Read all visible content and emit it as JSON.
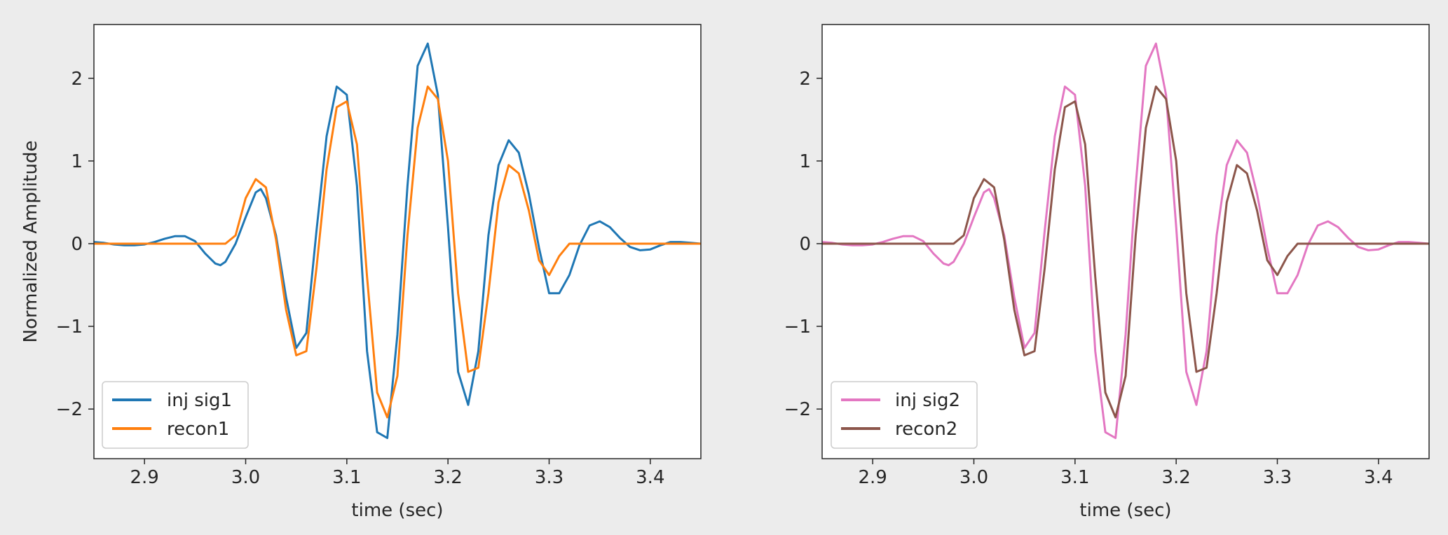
{
  "figure": {
    "background": "#ececec"
  },
  "chart_data": [
    {
      "type": "line",
      "title": "",
      "xlabel": "time (sec)",
      "ylabel": "Normalized Amplitude",
      "xlim": [
        2.85,
        3.45
      ],
      "ylim": [
        -2.6,
        2.65
      ],
      "xticks": [
        2.9,
        3.0,
        3.1,
        3.2,
        3.3,
        3.4
      ],
      "xtick_labels": [
        "2.9",
        "3.0",
        "3.1",
        "3.2",
        "3.3",
        "3.4"
      ],
      "yticks": [
        -2,
        -1,
        0,
        1,
        2
      ],
      "ytick_labels": [
        "−2",
        "−1",
        "0",
        "1",
        "2"
      ],
      "grid": false,
      "legend_position": "lower-left",
      "series": [
        {
          "name": "inj sig1",
          "color": "#1f77b4",
          "points": [
            [
              2.85,
              0.02
            ],
            [
              2.86,
              0.01
            ],
            [
              2.87,
              -0.01
            ],
            [
              2.88,
              -0.02
            ],
            [
              2.89,
              -0.02
            ],
            [
              2.9,
              -0.01
            ],
            [
              2.91,
              0.02
            ],
            [
              2.92,
              0.06
            ],
            [
              2.93,
              0.09
            ],
            [
              2.94,
              0.09
            ],
            [
              2.95,
              0.03
            ],
            [
              2.96,
              -0.12
            ],
            [
              2.97,
              -0.24
            ],
            [
              2.975,
              -0.26
            ],
            [
              2.98,
              -0.22
            ],
            [
              2.99,
              0.0
            ],
            [
              3.0,
              0.32
            ],
            [
              3.01,
              0.62
            ],
            [
              3.015,
              0.66
            ],
            [
              3.02,
              0.55
            ],
            [
              3.03,
              0.1
            ],
            [
              3.04,
              -0.65
            ],
            [
              3.05,
              -1.26
            ],
            [
              3.06,
              -1.08
            ],
            [
              3.07,
              0.15
            ],
            [
              3.08,
              1.3
            ],
            [
              3.09,
              1.9
            ],
            [
              3.1,
              1.8
            ],
            [
              3.11,
              0.7
            ],
            [
              3.12,
              -1.3
            ],
            [
              3.13,
              -2.28
            ],
            [
              3.14,
              -2.35
            ],
            [
              3.15,
              -1.1
            ],
            [
              3.16,
              0.7
            ],
            [
              3.17,
              2.15
            ],
            [
              3.18,
              2.42
            ],
            [
              3.19,
              1.8
            ],
            [
              3.2,
              0.2
            ],
            [
              3.21,
              -1.55
            ],
            [
              3.22,
              -1.95
            ],
            [
              3.23,
              -1.3
            ],
            [
              3.24,
              0.1
            ],
            [
              3.25,
              0.95
            ],
            [
              3.26,
              1.25
            ],
            [
              3.27,
              1.1
            ],
            [
              3.28,
              0.6
            ],
            [
              3.29,
              -0.05
            ],
            [
              3.3,
              -0.6
            ],
            [
              3.31,
              -0.6
            ],
            [
              3.32,
              -0.38
            ],
            [
              3.33,
              -0.02
            ],
            [
              3.34,
              0.22
            ],
            [
              3.35,
              0.27
            ],
            [
              3.36,
              0.2
            ],
            [
              3.37,
              0.07
            ],
            [
              3.38,
              -0.04
            ],
            [
              3.39,
              -0.08
            ],
            [
              3.4,
              -0.07
            ],
            [
              3.41,
              -0.02
            ],
            [
              3.42,
              0.02
            ],
            [
              3.43,
              0.02
            ],
            [
              3.44,
              0.01
            ],
            [
              3.45,
              0.0
            ]
          ]
        },
        {
          "name": "recon1",
          "color": "#ff7f0e",
          "points": [
            [
              2.85,
              0.0
            ],
            [
              2.98,
              0.0
            ],
            [
              2.99,
              0.1
            ],
            [
              3.0,
              0.55
            ],
            [
              3.01,
              0.78
            ],
            [
              3.02,
              0.68
            ],
            [
              3.03,
              0.05
            ],
            [
              3.04,
              -0.8
            ],
            [
              3.05,
              -1.35
            ],
            [
              3.06,
              -1.3
            ],
            [
              3.07,
              -0.3
            ],
            [
              3.08,
              0.9
            ],
            [
              3.09,
              1.65
            ],
            [
              3.1,
              1.72
            ],
            [
              3.11,
              1.2
            ],
            [
              3.12,
              -0.4
            ],
            [
              3.13,
              -1.8
            ],
            [
              3.14,
              -2.1
            ],
            [
              3.15,
              -1.6
            ],
            [
              3.16,
              0.1
            ],
            [
              3.17,
              1.4
            ],
            [
              3.18,
              1.9
            ],
            [
              3.19,
              1.75
            ],
            [
              3.2,
              1.0
            ],
            [
              3.21,
              -0.6
            ],
            [
              3.22,
              -1.55
            ],
            [
              3.23,
              -1.5
            ],
            [
              3.24,
              -0.6
            ],
            [
              3.25,
              0.5
            ],
            [
              3.26,
              0.95
            ],
            [
              3.27,
              0.85
            ],
            [
              3.28,
              0.4
            ],
            [
              3.29,
              -0.2
            ],
            [
              3.3,
              -0.38
            ],
            [
              3.31,
              -0.15
            ],
            [
              3.32,
              0.0
            ],
            [
              3.45,
              0.0
            ]
          ]
        }
      ]
    },
    {
      "type": "line",
      "title": "",
      "xlabel": "time (sec)",
      "ylabel": "",
      "xlim": [
        2.85,
        3.45
      ],
      "ylim": [
        -2.6,
        2.65
      ],
      "xticks": [
        2.9,
        3.0,
        3.1,
        3.2,
        3.3,
        3.4
      ],
      "xtick_labels": [
        "2.9",
        "3.0",
        "3.1",
        "3.2",
        "3.3",
        "3.4"
      ],
      "yticks": [
        -2,
        -1,
        0,
        1,
        2
      ],
      "ytick_labels": [
        "−2",
        "−1",
        "0",
        "1",
        "2"
      ],
      "grid": false,
      "legend_position": "lower-left",
      "series": [
        {
          "name": "inj sig2",
          "color": "#e377c2",
          "points": [
            [
              2.85,
              0.02
            ],
            [
              2.86,
              0.01
            ],
            [
              2.87,
              -0.01
            ],
            [
              2.88,
              -0.02
            ],
            [
              2.89,
              -0.02
            ],
            [
              2.9,
              -0.01
            ],
            [
              2.91,
              0.02
            ],
            [
              2.92,
              0.06
            ],
            [
              2.93,
              0.09
            ],
            [
              2.94,
              0.09
            ],
            [
              2.95,
              0.03
            ],
            [
              2.96,
              -0.12
            ],
            [
              2.97,
              -0.24
            ],
            [
              2.975,
              -0.26
            ],
            [
              2.98,
              -0.22
            ],
            [
              2.99,
              0.0
            ],
            [
              3.0,
              0.32
            ],
            [
              3.01,
              0.62
            ],
            [
              3.015,
              0.66
            ],
            [
              3.02,
              0.55
            ],
            [
              3.03,
              0.1
            ],
            [
              3.04,
              -0.65
            ],
            [
              3.05,
              -1.26
            ],
            [
              3.06,
              -1.08
            ],
            [
              3.07,
              0.15
            ],
            [
              3.08,
              1.3
            ],
            [
              3.09,
              1.9
            ],
            [
              3.1,
              1.8
            ],
            [
              3.11,
              0.7
            ],
            [
              3.12,
              -1.3
            ],
            [
              3.13,
              -2.28
            ],
            [
              3.14,
              -2.35
            ],
            [
              3.15,
              -1.1
            ],
            [
              3.16,
              0.7
            ],
            [
              3.17,
              2.15
            ],
            [
              3.18,
              2.42
            ],
            [
              3.19,
              1.8
            ],
            [
              3.2,
              0.2
            ],
            [
              3.21,
              -1.55
            ],
            [
              3.22,
              -1.95
            ],
            [
              3.23,
              -1.3
            ],
            [
              3.24,
              0.1
            ],
            [
              3.25,
              0.95
            ],
            [
              3.26,
              1.25
            ],
            [
              3.27,
              1.1
            ],
            [
              3.28,
              0.6
            ],
            [
              3.29,
              -0.05
            ],
            [
              3.3,
              -0.6
            ],
            [
              3.31,
              -0.6
            ],
            [
              3.32,
              -0.38
            ],
            [
              3.33,
              -0.02
            ],
            [
              3.34,
              0.22
            ],
            [
              3.35,
              0.27
            ],
            [
              3.36,
              0.2
            ],
            [
              3.37,
              0.07
            ],
            [
              3.38,
              -0.04
            ],
            [
              3.39,
              -0.08
            ],
            [
              3.4,
              -0.07
            ],
            [
              3.41,
              -0.02
            ],
            [
              3.42,
              0.02
            ],
            [
              3.43,
              0.02
            ],
            [
              3.44,
              0.01
            ],
            [
              3.45,
              0.0
            ]
          ]
        },
        {
          "name": "recon2",
          "color": "#8c564b",
          "points": [
            [
              2.85,
              0.0
            ],
            [
              2.98,
              0.0
            ],
            [
              2.99,
              0.1
            ],
            [
              3.0,
              0.55
            ],
            [
              3.01,
              0.78
            ],
            [
              3.02,
              0.68
            ],
            [
              3.03,
              0.05
            ],
            [
              3.04,
              -0.8
            ],
            [
              3.05,
              -1.35
            ],
            [
              3.06,
              -1.3
            ],
            [
              3.07,
              -0.3
            ],
            [
              3.08,
              0.9
            ],
            [
              3.09,
              1.65
            ],
            [
              3.1,
              1.72
            ],
            [
              3.11,
              1.2
            ],
            [
              3.12,
              -0.4
            ],
            [
              3.13,
              -1.8
            ],
            [
              3.14,
              -2.1
            ],
            [
              3.15,
              -1.6
            ],
            [
              3.16,
              0.1
            ],
            [
              3.17,
              1.4
            ],
            [
              3.18,
              1.9
            ],
            [
              3.19,
              1.75
            ],
            [
              3.2,
              1.0
            ],
            [
              3.21,
              -0.6
            ],
            [
              3.22,
              -1.55
            ],
            [
              3.23,
              -1.5
            ],
            [
              3.24,
              -0.6
            ],
            [
              3.25,
              0.5
            ],
            [
              3.26,
              0.95
            ],
            [
              3.27,
              0.85
            ],
            [
              3.28,
              0.4
            ],
            [
              3.29,
              -0.2
            ],
            [
              3.3,
              -0.38
            ],
            [
              3.31,
              -0.15
            ],
            [
              3.32,
              0.0
            ],
            [
              3.45,
              0.0
            ]
          ]
        }
      ]
    }
  ]
}
